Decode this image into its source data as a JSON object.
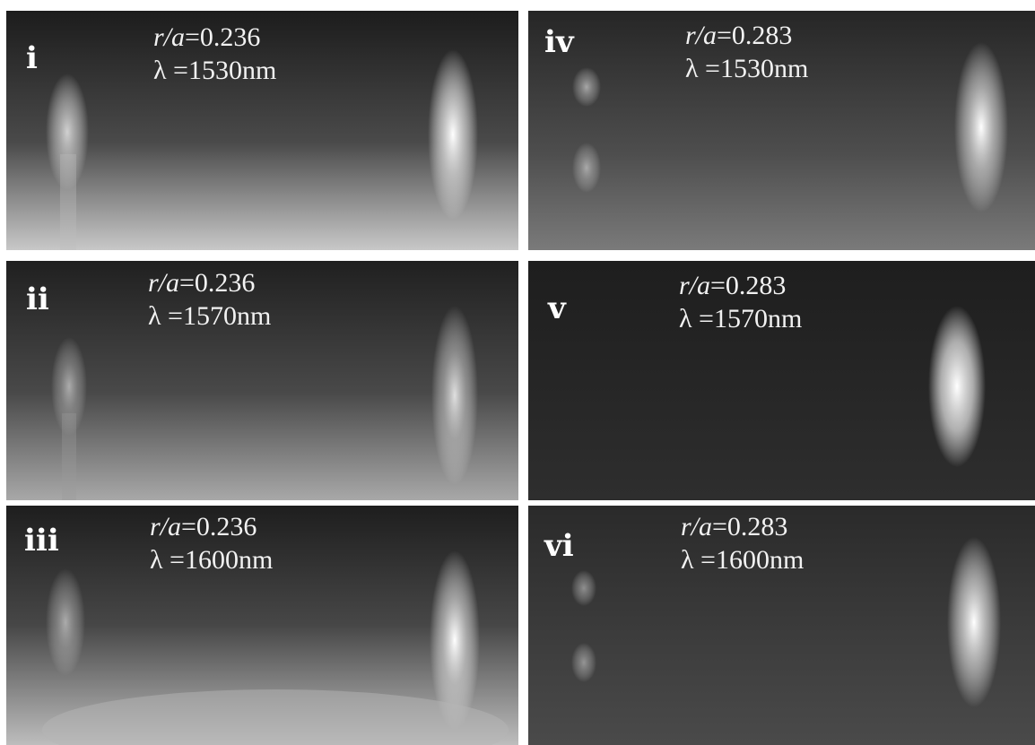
{
  "panels": [
    {
      "id": "i",
      "ra_label": "r/a",
      "ra_value": "=0.236",
      "lambda_symbol": "λ",
      "lambda_value": " =1530nm"
    },
    {
      "id": "ii",
      "ra_label": "r/a",
      "ra_value": "=0.236",
      "lambda_symbol": "λ",
      "lambda_value": " =1570nm"
    },
    {
      "id": "iii",
      "ra_label": "r/a",
      "ra_value": "=0.236",
      "lambda_symbol": "λ",
      "lambda_value": " =1600nm"
    },
    {
      "id": "iv",
      "ra_label": "r/a",
      "ra_value": "=0.283",
      "lambda_symbol": "λ",
      "lambda_value": " =1530nm"
    },
    {
      "id": "v",
      "ra_label": "r/a",
      "ra_value": "=0.283",
      "lambda_symbol": "λ",
      "lambda_value": " =1570nm"
    },
    {
      "id": "vi",
      "ra_label": "r/a",
      "ra_value": "=0.283",
      "lambda_symbol": "λ",
      "lambda_value": " =1600nm"
    }
  ]
}
